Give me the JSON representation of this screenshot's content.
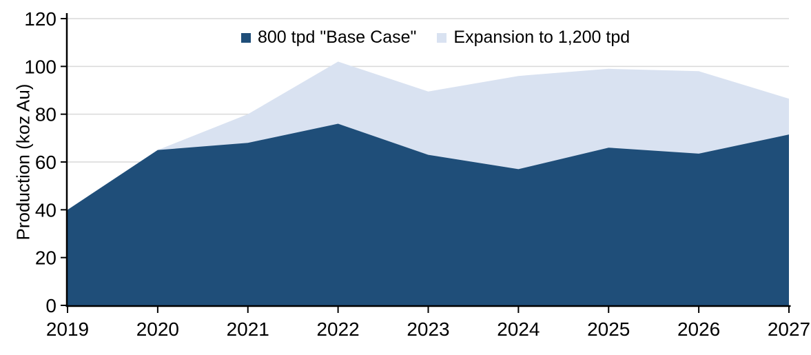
{
  "chart_data": {
    "type": "area",
    "stacked": true,
    "title": "",
    "x": [
      "2019",
      "2020",
      "2021",
      "2022",
      "2023",
      "2024",
      "2025",
      "2026",
      "2027"
    ],
    "series": [
      {
        "name": "800 tpd \"Base Case\"",
        "values": [
          40,
          65,
          68,
          76,
          63,
          57,
          66,
          63.5,
          71.5
        ],
        "color": "#1F4E79"
      },
      {
        "name": "Expansion to 1,200 tpd",
        "values": [
          0,
          0,
          12,
          26,
          26.5,
          39,
          33,
          34.5,
          15
        ],
        "color": "#D9E2F1"
      }
    ],
    "stacked_totals": [
      40,
      65,
      80,
      102,
      89.5,
      96,
      99,
      98,
      86.5
    ],
    "xlabel": "",
    "ylabel": "Production (koz Au)",
    "ylim": [
      0,
      120
    ],
    "yticks": [
      0,
      20,
      40,
      60,
      80,
      100,
      120
    ],
    "grid": "horizontal",
    "gridline_color": "#D9D9D9",
    "axis_color": "#000000",
    "text_color": "#000000",
    "legend_position": "top-center"
  }
}
